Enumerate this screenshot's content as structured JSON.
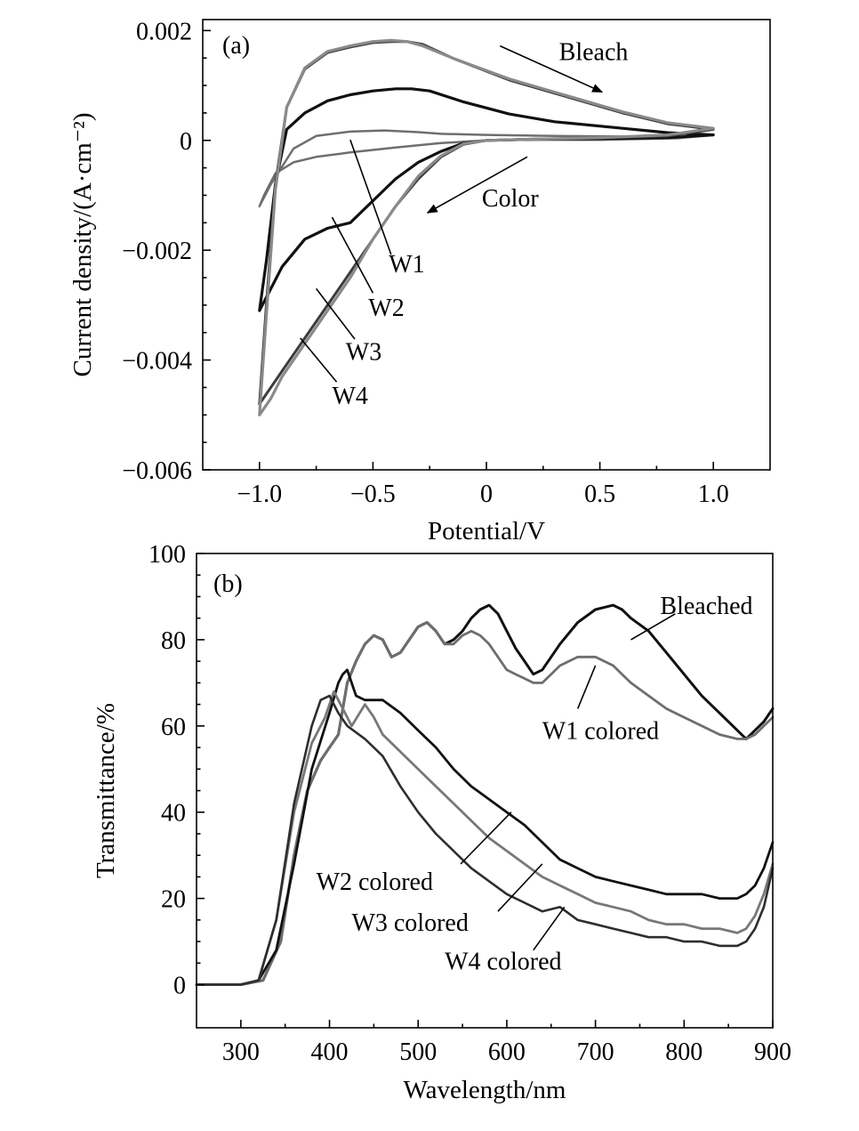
{
  "chart_data": [
    {
      "id": "a",
      "type": "line",
      "panel_label": "(a)",
      "xlabel": "Potential/V",
      "ylabel": "Current density/(A·cm⁻²)",
      "xlim": [
        -1.25,
        1.25
      ],
      "ylim": [
        -0.006,
        0.0022
      ],
      "x_ticks": [
        {
          "value": -1.0,
          "label": "−1.0"
        },
        {
          "value": -0.5,
          "label": "−0.5"
        },
        {
          "value": 0,
          "label": "0"
        },
        {
          "value": 0.5,
          "label": "0.5"
        },
        {
          "value": 1.0,
          "label": "1.0"
        }
      ],
      "y_ticks": [
        {
          "value": 0.002,
          "label": "0.002"
        },
        {
          "value": 0,
          "label": "0"
        },
        {
          "value": -0.002,
          "label": "−0.002"
        },
        {
          "value": -0.004,
          "label": "−0.004"
        },
        {
          "value": -0.006,
          "label": "−0.006"
        }
      ],
      "grid": false,
      "series": [
        {
          "name": "W1",
          "color": "#6e6e6e",
          "width": 2.5,
          "x": [
            -1.0,
            -0.95,
            -0.85,
            -0.75,
            -0.6,
            -0.45,
            -0.3,
            -0.2,
            0,
            0.3,
            0.6,
            0.85,
            1.0,
            0.85,
            0.5,
            0.2,
            0,
            -0.2,
            -0.4,
            -0.6,
            -0.75,
            -0.85,
            -0.93,
            -0.98,
            -1.0
          ],
          "y": [
            -0.0012,
            -0.0008,
            -0.00015,
            8e-05,
            0.00016,
            0.00018,
            0.00015,
            0.00012,
            0.0001,
            8e-05,
            7e-05,
            6e-05,
            0.0001,
            4e-05,
            1e-05,
            1e-05,
            0.0,
            -5e-05,
            -0.00013,
            -0.00022,
            -0.0003,
            -0.0004,
            -0.0006,
            -0.001,
            -0.0012
          ]
        },
        {
          "name": "W2",
          "color": "#111111",
          "width": 3.2,
          "x": [
            -1.0,
            -0.97,
            -0.93,
            -0.88,
            -0.8,
            -0.7,
            -0.6,
            -0.5,
            -0.4,
            -0.33,
            -0.25,
            -0.1,
            0.1,
            0.3,
            0.6,
            0.8,
            1.0,
            0.8,
            0.5,
            0.2,
            0,
            -0.1,
            -0.2,
            -0.3,
            -0.4,
            -0.5,
            -0.6,
            -0.7,
            -0.8,
            -0.9,
            -0.95,
            -1.0
          ],
          "y": [
            -0.0031,
            -0.0022,
            -0.0008,
            0.0002,
            0.0005,
            0.00072,
            0.00083,
            0.0009,
            0.00094,
            0.00094,
            0.0009,
            0.0007,
            0.00048,
            0.00034,
            0.00022,
            0.00014,
            0.0001,
            5e-05,
            3e-05,
            2e-05,
            0.0,
            -5e-05,
            -0.0002,
            -0.0004,
            -0.0007,
            -0.0011,
            -0.0015,
            -0.0016,
            -0.0018,
            -0.0023,
            -0.0027,
            -0.0031
          ]
        },
        {
          "name": "W3",
          "color": "#3c3c3c",
          "width": 3.0,
          "x": [
            -1.0,
            -0.97,
            -0.93,
            -0.88,
            -0.8,
            -0.7,
            -0.6,
            -0.5,
            -0.42,
            -0.35,
            -0.28,
            -0.15,
            0.1,
            0.35,
            0.6,
            0.8,
            1.0,
            0.8,
            0.5,
            0.2,
            0,
            -0.1,
            -0.2,
            -0.3,
            -0.4,
            -0.5,
            -0.6,
            -0.7,
            -0.8,
            -0.9,
            -0.95,
            -1.0
          ],
          "y": [
            -0.0048,
            -0.003,
            -0.0008,
            0.0006,
            0.0013,
            0.0016,
            0.0017,
            0.00178,
            0.0018,
            0.0018,
            0.00175,
            0.0015,
            0.0011,
            0.0008,
            0.0005,
            0.0003,
            0.0002,
            8e-05,
            4e-05,
            2e-05,
            0.0,
            -7e-05,
            -0.0003,
            -0.0007,
            -0.0012,
            -0.0018,
            -0.0024,
            -0.003,
            -0.0036,
            -0.0042,
            -0.0045,
            -0.0048
          ]
        },
        {
          "name": "W4",
          "color": "#8a8a8a",
          "width": 3.2,
          "x": [
            -1.0,
            -0.97,
            -0.93,
            -0.88,
            -0.8,
            -0.7,
            -0.6,
            -0.5,
            -0.42,
            -0.35,
            -0.28,
            -0.15,
            0.1,
            0.35,
            0.6,
            0.8,
            1.0,
            0.8,
            0.5,
            0.2,
            0,
            -0.1,
            -0.2,
            -0.3,
            -0.4,
            -0.5,
            -0.6,
            -0.7,
            -0.8,
            -0.9,
            -0.95,
            -1.0
          ],
          "y": [
            -0.005,
            -0.0032,
            -0.0009,
            0.0006,
            0.00132,
            0.00162,
            0.00172,
            0.0018,
            0.00182,
            0.0018,
            0.00172,
            0.0015,
            0.00112,
            0.00082,
            0.00052,
            0.00032,
            0.00022,
            0.0001,
            5e-05,
            2e-05,
            0.0,
            -6e-05,
            -0.00028,
            -0.00065,
            -0.0012,
            -0.0018,
            -0.0025,
            -0.0031,
            -0.0037,
            -0.0043,
            -0.0047,
            -0.005
          ]
        }
      ],
      "annotations": [
        {
          "text": "Bleach",
          "x": 0.32,
          "y": 0.00146,
          "anchor": "start"
        },
        {
          "text": "Color",
          "x": -0.02,
          "y": -0.0012,
          "anchor": "start"
        },
        {
          "text": "W1",
          "x": -0.43,
          "y": -0.0024,
          "anchor": "start"
        },
        {
          "text": "W2",
          "x": -0.52,
          "y": -0.0032,
          "anchor": "start"
        },
        {
          "text": "W3",
          "x": -0.62,
          "y": -0.004,
          "anchor": "start"
        },
        {
          "text": "W4",
          "x": -0.68,
          "y": -0.0048,
          "anchor": "start"
        }
      ],
      "arrows": [
        {
          "from": [
            0.06,
            0.00172
          ],
          "to": [
            0.51,
            0.00088
          ]
        },
        {
          "from": [
            0.18,
            -0.0003
          ],
          "to": [
            -0.26,
            -0.00132
          ]
        }
      ],
      "leaders": [
        {
          "from": [
            -0.6,
            1e-05
          ],
          "to": [
            -0.42,
            -0.00208
          ]
        },
        {
          "from": [
            -0.68,
            -0.0014
          ],
          "to": [
            -0.5,
            -0.00278
          ]
        },
        {
          "from": [
            -0.75,
            -0.0027
          ],
          "to": [
            -0.58,
            -0.00362
          ]
        },
        {
          "from": [
            -0.82,
            -0.0036
          ],
          "to": [
            -0.66,
            -0.0044
          ]
        }
      ]
    },
    {
      "id": "b",
      "type": "line",
      "panel_label": "(b)",
      "xlabel": "Wavelength/nm",
      "ylabel": "Transmittance/%",
      "xlim": [
        250,
        900
      ],
      "ylim": [
        -10,
        100
      ],
      "x_ticks": [
        {
          "value": 300,
          "label": "300"
        },
        {
          "value": 400,
          "label": "400"
        },
        {
          "value": 500,
          "label": "500"
        },
        {
          "value": 600,
          "label": "600"
        },
        {
          "value": 700,
          "label": "700"
        },
        {
          "value": 800,
          "label": "800"
        },
        {
          "value": 900,
          "label": "900"
        }
      ],
      "y_ticks": [
        {
          "value": 0,
          "label": "0"
        },
        {
          "value": 20,
          "label": "20"
        },
        {
          "value": 40,
          "label": "40"
        },
        {
          "value": 60,
          "label": "60"
        },
        {
          "value": 80,
          "label": "80"
        },
        {
          "value": 100,
          "label": "100"
        }
      ],
      "grid": false,
      "series": [
        {
          "name": "Bleached",
          "color": "#111111",
          "width": 3.0,
          "x": [
            250,
            300,
            325,
            345,
            360,
            375,
            390,
            400,
            410,
            420,
            430,
            440,
            450,
            460,
            470,
            480,
            500,
            510,
            520,
            530,
            540,
            550,
            560,
            570,
            580,
            590,
            600,
            610,
            620,
            630,
            640,
            650,
            660,
            680,
            700,
            720,
            730,
            740,
            760,
            780,
            800,
            820,
            840,
            860,
            870,
            880,
            890,
            900
          ],
          "y": [
            0,
            0,
            1,
            10,
            30,
            45,
            52,
            55,
            58,
            70,
            75,
            79,
            81,
            80,
            76,
            77,
            83,
            84,
            82,
            79,
            80,
            82,
            85,
            87,
            88,
            86,
            82,
            78,
            75,
            72,
            73,
            76,
            79,
            84,
            87,
            88,
            87,
            85,
            82,
            77,
            72,
            67,
            63,
            59,
            57,
            59,
            61,
            64
          ]
        },
        {
          "name": "W1 colored",
          "color": "#6e6e6e",
          "width": 2.8,
          "x": [
            250,
            300,
            325,
            345,
            360,
            375,
            390,
            400,
            410,
            420,
            430,
            440,
            450,
            460,
            470,
            480,
            500,
            510,
            520,
            530,
            540,
            550,
            560,
            570,
            580,
            590,
            600,
            610,
            620,
            630,
            640,
            650,
            660,
            680,
            700,
            720,
            730,
            740,
            760,
            780,
            800,
            820,
            840,
            860,
            870,
            880,
            890,
            900
          ],
          "y": [
            0,
            0,
            1,
            10,
            30,
            45,
            52,
            55,
            58,
            70,
            75,
            79,
            81,
            80,
            76,
            77,
            83,
            84,
            82,
            79,
            79,
            81,
            82,
            81,
            79,
            76,
            73,
            72,
            71,
            70,
            70,
            72,
            74,
            76,
            76,
            74,
            72,
            70,
            67,
            64,
            62,
            60,
            58,
            57,
            57,
            58,
            60,
            62
          ]
        },
        {
          "name": "W2 colored",
          "color": "#111111",
          "width": 2.8,
          "x": [
            250,
            300,
            320,
            340,
            360,
            380,
            400,
            410,
            415,
            420,
            430,
            440,
            460,
            480,
            500,
            520,
            540,
            560,
            580,
            600,
            620,
            640,
            660,
            680,
            700,
            720,
            740,
            760,
            780,
            800,
            820,
            840,
            860,
            870,
            880,
            890,
            900
          ],
          "y": [
            0,
            0,
            1,
            8,
            28,
            50,
            63,
            70,
            72,
            73,
            67,
            66,
            66,
            63,
            59,
            55,
            50,
            46,
            43,
            40,
            37,
            33,
            29,
            27,
            25,
            24,
            23,
            22,
            21,
            21,
            21,
            20,
            20,
            21,
            23,
            27,
            33
          ]
        },
        {
          "name": "W3 colored",
          "color": "#787878",
          "width": 2.8,
          "x": [
            250,
            300,
            320,
            340,
            360,
            380,
            395,
            405,
            415,
            425,
            440,
            450,
            460,
            480,
            500,
            520,
            540,
            560,
            580,
            600,
            620,
            640,
            660,
            680,
            700,
            720,
            740,
            760,
            780,
            800,
            820,
            840,
            860,
            870,
            880,
            890,
            900
          ],
          "y": [
            0,
            0,
            1,
            15,
            40,
            56,
            62,
            68,
            64,
            60,
            65,
            62,
            58,
            54,
            50,
            46,
            42,
            38,
            34,
            31,
            28,
            25,
            23,
            21,
            19,
            18,
            17,
            15,
            14,
            14,
            13,
            13,
            12,
            13,
            16,
            21,
            28
          ]
        },
        {
          "name": "W4 colored",
          "color": "#2e2e2e",
          "width": 2.6,
          "x": [
            250,
            300,
            320,
            340,
            360,
            380,
            390,
            400,
            410,
            420,
            440,
            460,
            480,
            500,
            520,
            540,
            560,
            580,
            600,
            620,
            640,
            660,
            680,
            700,
            720,
            740,
            760,
            780,
            800,
            820,
            840,
            860,
            870,
            880,
            890,
            900
          ],
          "y": [
            0,
            0,
            1,
            15,
            42,
            60,
            66,
            67,
            63,
            60,
            57,
            53,
            46,
            40,
            35,
            31,
            27,
            24,
            21,
            19,
            17,
            18,
            15,
            14,
            13,
            12,
            11,
            11,
            10,
            10,
            9,
            9,
            10,
            13,
            18,
            27
          ]
        }
      ],
      "annotations": [
        {
          "text": "Bleached",
          "x": 773,
          "y": 86,
          "anchor": "start"
        },
        {
          "text": "W1 colored",
          "x": 640,
          "y": 57,
          "anchor": "start"
        },
        {
          "text": "W2 colored",
          "x": 385,
          "y": 22,
          "anchor": "start"
        },
        {
          "text": "W3 colored",
          "x": 425,
          "y": 12.5,
          "anchor": "start"
        },
        {
          "text": "W4 colored",
          "x": 530,
          "y": 3.5,
          "anchor": "start"
        }
      ],
      "arrows": [],
      "leaders": [
        {
          "from": [
            740,
            80
          ],
          "to": [
            790,
            86
          ]
        },
        {
          "from": [
            700,
            74
          ],
          "to": [
            680,
            64
          ]
        },
        {
          "from": [
            605,
            40
          ],
          "to": [
            548,
            28
          ]
        },
        {
          "from": [
            640,
            28
          ],
          "to": [
            590,
            17
          ]
        },
        {
          "from": [
            665,
            18
          ],
          "to": [
            630,
            8
          ]
        }
      ]
    }
  ]
}
